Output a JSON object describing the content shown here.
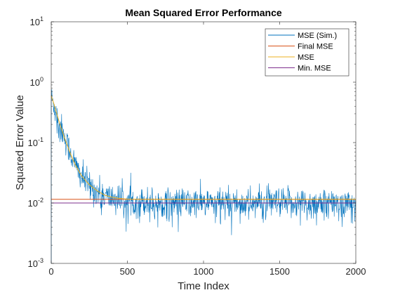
{
  "chart_data": {
    "type": "line",
    "title": "Mean Squared Error Performance",
    "xlabel": "Time Index",
    "ylabel": "Squared Error Value",
    "xlim": [
      0,
      2000
    ],
    "ylim": [
      0.001,
      10
    ],
    "yscale": "log",
    "x_ticks": [
      0,
      500,
      1000,
      1500,
      2000
    ],
    "x_tick_labels": [
      "0",
      "500",
      "1000",
      "1500",
      "2000"
    ],
    "y_ticks": [
      {
        "value": 0.001,
        "base": "10",
        "exp": "-3"
      },
      {
        "value": 0.01,
        "base": "10",
        "exp": "-2"
      },
      {
        "value": 0.1,
        "base": "10",
        "exp": "-1"
      },
      {
        "value": 1,
        "base": "10",
        "exp": "0"
      },
      {
        "value": 10,
        "base": "10",
        "exp": "1"
      }
    ],
    "grid": false,
    "legend_position": "top-right",
    "series": [
      {
        "name": "MSE (Sim.)",
        "color": "#0072BD",
        "style": "noisy",
        "x": [
          0,
          20,
          40,
          60,
          80,
          100,
          120,
          140,
          160,
          180,
          200,
          250,
          300,
          350,
          400,
          450,
          500,
          600,
          700,
          800,
          900,
          1000,
          1100,
          1200,
          1300,
          1400,
          1500,
          1600,
          1700,
          1800,
          1900,
          2000
        ],
        "y": [
          0.55,
          0.4,
          0.27,
          0.19,
          0.14,
          0.1,
          0.075,
          0.055,
          0.042,
          0.033,
          0.027,
          0.019,
          0.015,
          0.013,
          0.012,
          0.0112,
          0.011,
          0.0105,
          0.0102,
          0.0101,
          0.01,
          0.01,
          0.01,
          0.0101,
          0.01,
          0.01,
          0.01,
          0.0101,
          0.01,
          0.01,
          0.01,
          0.0101
        ]
      },
      {
        "name": "Final MSE",
        "color": "#D95319",
        "style": "flat",
        "x": [
          0,
          2000
        ],
        "y": [
          0.0115,
          0.0115
        ]
      },
      {
        "name": "MSE",
        "color": "#EDB120",
        "style": "smooth",
        "x": [
          0,
          20,
          40,
          60,
          80,
          100,
          120,
          140,
          160,
          180,
          200,
          250,
          300,
          350,
          400,
          450,
          500,
          600,
          700,
          800,
          900,
          1000,
          1100,
          1200,
          1300,
          1400,
          1500,
          1600,
          1700,
          1800,
          1900,
          2000
        ],
        "y": [
          0.6,
          0.42,
          0.28,
          0.19,
          0.135,
          0.098,
          0.072,
          0.054,
          0.042,
          0.034,
          0.028,
          0.02,
          0.016,
          0.0135,
          0.0125,
          0.0119,
          0.0116,
          0.0115,
          0.0115,
          0.0115,
          0.0115,
          0.0115,
          0.0115,
          0.0115,
          0.0115,
          0.0115,
          0.0115,
          0.0115,
          0.0115,
          0.0115,
          0.0115,
          0.0115
        ]
      },
      {
        "name": "Min. MSE",
        "color": "#7E2F8E",
        "style": "flat",
        "x": [
          0,
          2000
        ],
        "y": [
          0.01,
          0.01
        ]
      }
    ]
  }
}
